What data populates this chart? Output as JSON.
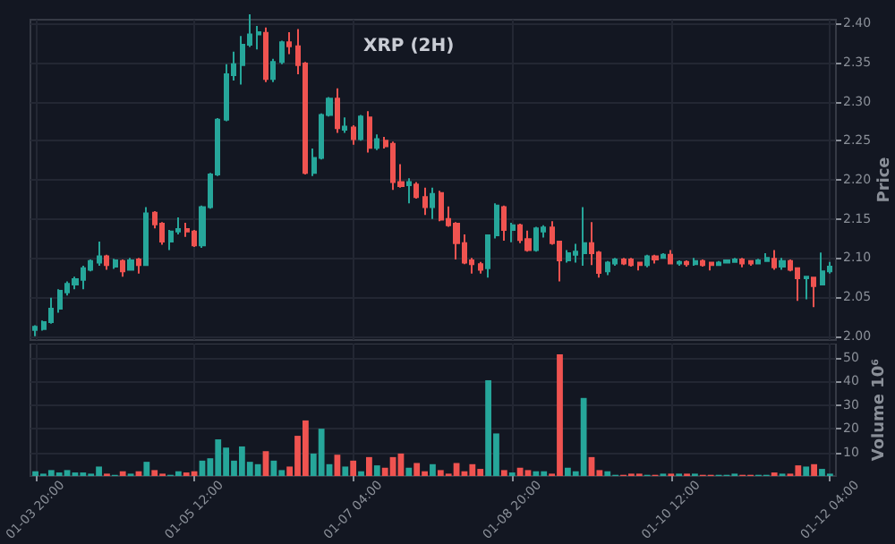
{
  "chart_data": [
    {
      "type": "candlestick",
      "title": "XRP (2H)",
      "ylabel": "Price",
      "grid": true,
      "tick_labels": "y",
      "xlim": [
        "--01-03T18:45",
        "--01-12T05:30"
      ],
      "xticks": [
        {
          "value": "--01-03T20:00",
          "label": "01-03 20:00"
        },
        {
          "value": "--01-05T12:00",
          "label": "01-05 12:00"
        },
        {
          "value": "--01-07T04:00",
          "label": "01-07 04:00"
        },
        {
          "value": "--01-08T20:00",
          "label": "01-08 20:00"
        },
        {
          "value": "--01-10T12:00",
          "label": "01-10 12:00"
        },
        {
          "value": "--01-12T04:00",
          "label": "01-12 04:00"
        }
      ],
      "ylim": [
        1.995,
        2.405
      ],
      "yticks": [
        {
          "value": 2.0,
          "label": "2.00"
        },
        {
          "value": 2.05,
          "label": "2.05"
        },
        {
          "value": 2.1,
          "label": "2.10"
        },
        {
          "value": 2.15,
          "label": "2.15"
        },
        {
          "value": 2.2,
          "label": "2.20"
        },
        {
          "value": 2.25,
          "label": "2.25"
        },
        {
          "value": 2.3,
          "label": "2.30"
        },
        {
          "value": 2.35,
          "label": "2.35"
        },
        {
          "value": 2.4,
          "label": "2.40"
        }
      ],
      "x": [
        "--01-03T20:00",
        "--01-03T22:00",
        "--01-04T00:00",
        "--01-04T02:00",
        "--01-04T04:00",
        "--01-04T06:00",
        "--01-04T08:00",
        "--01-04T10:00",
        "--01-04T12:00",
        "--01-04T14:00",
        "--01-04T16:00",
        "--01-04T18:00",
        "--01-04T20:00",
        "--01-04T22:00",
        "--01-05T00:00",
        "--01-05T02:00",
        "--01-05T04:00",
        "--01-05T06:00",
        "--01-05T08:00",
        "--01-05T10:00",
        "--01-05T12:00",
        "--01-05T14:00",
        "--01-05T16:00",
        "--01-05T18:00",
        "--01-05T20:00",
        "--01-05T22:00",
        "--01-06T00:00",
        "--01-06T02:00",
        "--01-06T04:00",
        "--01-06T06:00",
        "--01-06T08:00",
        "--01-06T10:00",
        "--01-06T12:00",
        "--01-06T14:00",
        "--01-06T16:00",
        "--01-06T18:00",
        "--01-06T20:00",
        "--01-06T22:00",
        "--01-07T00:00",
        "--01-07T02:00",
        "--01-07T04:00",
        "--01-07T06:00",
        "--01-07T08:00",
        "--01-07T10:00",
        "--01-07T12:00",
        "--01-07T14:00",
        "--01-07T16:00",
        "--01-07T18:00",
        "--01-07T20:00",
        "--01-07T22:00",
        "--01-08T00:00",
        "--01-08T02:00",
        "--01-08T04:00",
        "--01-08T06:00",
        "--01-08T08:00",
        "--01-08T10:00",
        "--01-08T12:00",
        "--01-08T14:00",
        "--01-08T16:00",
        "--01-08T18:00",
        "--01-08T20:00",
        "--01-08T22:00",
        "--01-09T00:00",
        "--01-09T02:00",
        "--01-09T04:00",
        "--01-09T06:00",
        "--01-09T08:00",
        "--01-09T10:00",
        "--01-09T12:00",
        "--01-09T14:00",
        "--01-09T16:00",
        "--01-09T18:00",
        "--01-09T20:00",
        "--01-09T22:00",
        "--01-10T00:00",
        "--01-10T02:00",
        "--01-10T04:00",
        "--01-10T06:00",
        "--01-10T08:00",
        "--01-10T10:00",
        "--01-10T12:00",
        "--01-10T14:00",
        "--01-10T16:00",
        "--01-10T18:00",
        "--01-10T20:00",
        "--01-10T22:00",
        "--01-11T00:00",
        "--01-11T02:00",
        "--01-11T04:00",
        "--01-11T06:00",
        "--01-11T08:00",
        "--01-11T10:00",
        "--01-11T12:00",
        "--01-11T14:00",
        "--01-11T16:00",
        "--01-11T18:00",
        "--01-11T20:00",
        "--01-11T22:00",
        "--01-12T00:00",
        "--01-12T02:00",
        "--01-12T04:00"
      ],
      "ohlc": [
        [
          2.008,
          2.014,
          2.0,
          2.012
        ],
        [
          2.009,
          2.02,
          2.007,
          2.018
        ],
        [
          2.018,
          2.049,
          2.016,
          2.035
        ],
        [
          2.035,
          2.06,
          2.03,
          2.058
        ],
        [
          2.056,
          2.07,
          2.052,
          2.067
        ],
        [
          2.066,
          2.076,
          2.06,
          2.073
        ],
        [
          2.072,
          2.09,
          2.06,
          2.087
        ],
        [
          2.085,
          2.098,
          2.083,
          2.096
        ],
        [
          2.094,
          2.121,
          2.09,
          2.102
        ],
        [
          2.102,
          2.104,
          2.085,
          2.091
        ],
        [
          2.089,
          2.099,
          2.086,
          2.097
        ],
        [
          2.096,
          2.098,
          2.076,
          2.083
        ],
        [
          2.085,
          2.1,
          2.084,
          2.097
        ],
        [
          2.098,
          2.1,
          2.08,
          2.091
        ],
        [
          2.091,
          2.165,
          2.09,
          2.157
        ],
        [
          2.158,
          2.16,
          2.138,
          2.143
        ],
        [
          2.144,
          2.146,
          2.117,
          2.121
        ],
        [
          2.121,
          2.136,
          2.11,
          2.134
        ],
        [
          2.134,
          2.152,
          2.13,
          2.137
        ],
        [
          2.137,
          2.145,
          2.127,
          2.134
        ],
        [
          2.134,
          2.136,
          2.114,
          2.116
        ],
        [
          2.116,
          2.167,
          2.113,
          2.165
        ],
        [
          2.165,
          2.209,
          2.163,
          2.207
        ],
        [
          2.207,
          2.279,
          2.205,
          2.277
        ],
        [
          2.277,
          2.348,
          2.275,
          2.335
        ],
        [
          2.334,
          2.364,
          2.327,
          2.348
        ],
        [
          2.347,
          2.384,
          2.322,
          2.373
        ],
        [
          2.373,
          2.412,
          2.37,
          2.386
        ],
        [
          2.386,
          2.397,
          2.367,
          2.389
        ],
        [
          2.388,
          2.395,
          2.325,
          2.329
        ],
        [
          2.329,
          2.355,
          2.325,
          2.351
        ],
        [
          2.351,
          2.378,
          2.348,
          2.376
        ],
        [
          2.376,
          2.389,
          2.361,
          2.371
        ],
        [
          2.371,
          2.393,
          2.335,
          2.347
        ],
        [
          2.349,
          2.351,
          2.207,
          2.209
        ],
        [
          2.209,
          2.24,
          2.205,
          2.228
        ],
        [
          2.228,
          2.285,
          2.226,
          2.283
        ],
        [
          2.283,
          2.306,
          2.281,
          2.304
        ],
        [
          2.304,
          2.317,
          2.26,
          2.266
        ],
        [
          2.264,
          2.28,
          2.26,
          2.268
        ],
        [
          2.267,
          2.27,
          2.245,
          2.252
        ],
        [
          2.252,
          2.283,
          2.25,
          2.281
        ],
        [
          2.28,
          2.288,
          2.235,
          2.241
        ],
        [
          2.241,
          2.258,
          2.238,
          2.252
        ],
        [
          2.25,
          2.255,
          2.24,
          2.243
        ],
        [
          2.246,
          2.249,
          2.187,
          2.197
        ],
        [
          2.197,
          2.22,
          2.19,
          2.192
        ],
        [
          2.193,
          2.202,
          2.17,
          2.197
        ],
        [
          2.194,
          2.197,
          2.176,
          2.178
        ],
        [
          2.178,
          2.19,
          2.155,
          2.165
        ],
        [
          2.165,
          2.19,
          2.15,
          2.182
        ],
        [
          2.183,
          2.186,
          2.147,
          2.149
        ],
        [
          2.15,
          2.166,
          2.14,
          2.142
        ],
        [
          2.144,
          2.146,
          2.098,
          2.119
        ],
        [
          2.119,
          2.13,
          2.092,
          2.094
        ],
        [
          2.097,
          2.1,
          2.08,
          2.092
        ],
        [
          2.092,
          2.095,
          2.08,
          2.085
        ],
        [
          2.087,
          2.13,
          2.075,
          2.129
        ],
        [
          2.129,
          2.17,
          2.125,
          2.167
        ],
        [
          2.165,
          2.167,
          2.122,
          2.136
        ],
        [
          2.136,
          2.145,
          2.12,
          2.142
        ],
        [
          2.142,
          2.144,
          2.119,
          2.123
        ],
        [
          2.124,
          2.135,
          2.108,
          2.11
        ],
        [
          2.11,
          2.14,
          2.108,
          2.138
        ],
        [
          2.134,
          2.142,
          2.126,
          2.139
        ],
        [
          2.139,
          2.147,
          2.117,
          2.119
        ],
        [
          2.121,
          2.122,
          2.07,
          2.097
        ],
        [
          2.097,
          2.11,
          2.094,
          2.106
        ],
        [
          2.104,
          2.118,
          2.094,
          2.108
        ],
        [
          2.106,
          2.165,
          2.09,
          2.119
        ],
        [
          2.119,
          2.146,
          2.091,
          2.106
        ],
        [
          2.107,
          2.109,
          2.075,
          2.081
        ],
        [
          2.083,
          2.096,
          2.078,
          2.094
        ],
        [
          2.093,
          2.1,
          2.09,
          2.098
        ],
        [
          2.098,
          2.1,
          2.091,
          2.093
        ],
        [
          2.098,
          2.1,
          2.089,
          2.091
        ],
        [
          2.094,
          2.094,
          2.084,
          2.091
        ],
        [
          2.091,
          2.104,
          2.088,
          2.102
        ],
        [
          2.102,
          2.104,
          2.093,
          2.098
        ],
        [
          2.1,
          2.106,
          2.099,
          2.104
        ],
        [
          2.104,
          2.11,
          2.092,
          2.093
        ],
        [
          2.093,
          2.097,
          2.09,
          2.095
        ],
        [
          2.095,
          2.097,
          2.089,
          2.092
        ],
        [
          2.092,
          2.1,
          2.09,
          2.096
        ],
        [
          2.096,
          2.098,
          2.089,
          2.091
        ],
        [
          2.094,
          2.095,
          2.084,
          2.091
        ],
        [
          2.091,
          2.096,
          2.09,
          2.094
        ],
        [
          2.094,
          2.098,
          2.093,
          2.097
        ],
        [
          2.095,
          2.1,
          2.094,
          2.098
        ],
        [
          2.098,
          2.1,
          2.088,
          2.093
        ],
        [
          2.096,
          2.097,
          2.09,
          2.093
        ],
        [
          2.093,
          2.099,
          2.092,
          2.097
        ],
        [
          2.096,
          2.106,
          2.095,
          2.1
        ],
        [
          2.099,
          2.11,
          2.085,
          2.088
        ],
        [
          2.089,
          2.1,
          2.085,
          2.096
        ],
        [
          2.096,
          2.098,
          2.083,
          2.085
        ],
        [
          2.087,
          2.087,
          2.045,
          2.074
        ],
        [
          2.074,
          2.077,
          2.047,
          2.076
        ],
        [
          2.075,
          2.076,
          2.037,
          2.064
        ],
        [
          2.066,
          2.107,
          2.065,
          2.083
        ],
        [
          2.083,
          2.095,
          2.08,
          2.089
        ]
      ]
    },
    {
      "type": "bar",
      "ylabel": "Volume 10⁶",
      "grid": true,
      "xlim": [
        "--01-03T18:45",
        "--01-12T05:30"
      ],
      "xticks": [
        {
          "value": "--01-03T20:00",
          "label": "01-03 20:00"
        },
        {
          "value": "--01-05T12:00",
          "label": "01-05 12:00"
        },
        {
          "value": "--01-07T04:00",
          "label": "01-07 04:00"
        },
        {
          "value": "--01-08T20:00",
          "label": "01-08 20:00"
        },
        {
          "value": "--01-10T12:00",
          "label": "01-10 12:00"
        },
        {
          "value": "--01-12T04:00",
          "label": "01-12 04:00"
        }
      ],
      "ylim": [
        0,
        56
      ],
      "yticks": [
        10,
        20,
        30,
        40,
        50
      ],
      "x": [
        "--01-03T20:00",
        "--01-03T22:00",
        "--01-04T00:00",
        "--01-04T02:00",
        "--01-04T04:00",
        "--01-04T06:00",
        "--01-04T08:00",
        "--01-04T10:00",
        "--01-04T12:00",
        "--01-04T14:00",
        "--01-04T16:00",
        "--01-04T18:00",
        "--01-04T20:00",
        "--01-04T22:00",
        "--01-05T00:00",
        "--01-05T02:00",
        "--01-05T04:00",
        "--01-05T06:00",
        "--01-05T08:00",
        "--01-05T10:00",
        "--01-05T12:00",
        "--01-05T14:00",
        "--01-05T16:00",
        "--01-05T18:00",
        "--01-05T20:00",
        "--01-05T22:00",
        "--01-06T00:00",
        "--01-06T02:00",
        "--01-06T04:00",
        "--01-06T06:00",
        "--01-06T08:00",
        "--01-06T10:00",
        "--01-06T12:00",
        "--01-06T14:00",
        "--01-06T16:00",
        "--01-06T18:00",
        "--01-06T20:00",
        "--01-06T22:00",
        "--01-07T00:00",
        "--01-07T02:00",
        "--01-07T04:00",
        "--01-07T06:00",
        "--01-07T08:00",
        "--01-07T10:00",
        "--01-07T12:00",
        "--01-07T14:00",
        "--01-07T16:00",
        "--01-07T18:00",
        "--01-07T20:00",
        "--01-07T22:00",
        "--01-08T00:00",
        "--01-08T02:00",
        "--01-08T04:00",
        "--01-08T06:00",
        "--01-08T08:00",
        "--01-08T10:00",
        "--01-08T12:00",
        "--01-08T14:00",
        "--01-08T16:00",
        "--01-08T18:00",
        "--01-08T20:00",
        "--01-08T22:00",
        "--01-09T00:00",
        "--01-09T02:00",
        "--01-09T04:00",
        "--01-09T06:00",
        "--01-09T08:00",
        "--01-09T10:00",
        "--01-09T12:00",
        "--01-09T14:00",
        "--01-09T16:00",
        "--01-09T18:00",
        "--01-09T20:00",
        "--01-09T22:00",
        "--01-10T00:00",
        "--01-10T02:00",
        "--01-10T04:00",
        "--01-10T06:00",
        "--01-10T08:00",
        "--01-10T10:00",
        "--01-10T12:00",
        "--01-10T14:00",
        "--01-10T16:00",
        "--01-10T18:00",
        "--01-10T20:00",
        "--01-10T22:00",
        "--01-11T00:00",
        "--01-11T02:00",
        "--01-11T04:00",
        "--01-11T06:00",
        "--01-11T08:00",
        "--01-11T10:00",
        "--01-11T12:00",
        "--01-11T14:00",
        "--01-11T16:00",
        "--01-11T18:00",
        "--01-11T20:00",
        "--01-11T22:00",
        "--01-12T00:00",
        "--01-12T02:00",
        "--01-12T04:00"
      ],
      "values": [
        2,
        1,
        2.5,
        1.5,
        2.5,
        1.5,
        1.5,
        1,
        4,
        1,
        0.5,
        2,
        1,
        2,
        6,
        2.5,
        1,
        0.5,
        2,
        1.5,
        2,
        6.5,
        7.5,
        15.5,
        12,
        6.5,
        12.5,
        6,
        5,
        10.5,
        6.5,
        2.5,
        4,
        17,
        23.5,
        9.5,
        20,
        5,
        9,
        4,
        6.5,
        2,
        8,
        4.5,
        3.5,
        8,
        9.5,
        3.5,
        5.5,
        2,
        5,
        2.5,
        1,
        5.5,
        2,
        5,
        3,
        40.5,
        18,
        2.5,
        1.5,
        3.5,
        2.5,
        2,
        2,
        1,
        51.5,
        3.5,
        2,
        33,
        8,
        2.5,
        2,
        0.5,
        0.5,
        1,
        1,
        0.5,
        0.5,
        1,
        1,
        1,
        1,
        1,
        0.5,
        0.5,
        0.5,
        0.5,
        1,
        0.5,
        0.5,
        0.5,
        0.5,
        1.5,
        1,
        1,
        4.5,
        4,
        5,
        3,
        1
      ],
      "colors": [
        "#26a69a",
        "#26a69a",
        "#26a69a",
        "#26a69a",
        "#26a69a",
        "#26a69a",
        "#26a69a",
        "#26a69a",
        "#26a69a",
        "#ef5350",
        "#26a69a",
        "#ef5350",
        "#26a69a",
        "#ef5350",
        "#26a69a",
        "#ef5350",
        "#ef5350",
        "#26a69a",
        "#26a69a",
        "#ef5350",
        "#ef5350",
        "#26a69a",
        "#26a69a",
        "#26a69a",
        "#26a69a",
        "#26a69a",
        "#26a69a",
        "#26a69a",
        "#26a69a",
        "#ef5350",
        "#26a69a",
        "#26a69a",
        "#ef5350",
        "#ef5350",
        "#ef5350",
        "#26a69a",
        "#26a69a",
        "#26a69a",
        "#ef5350",
        "#26a69a",
        "#ef5350",
        "#26a69a",
        "#ef5350",
        "#26a69a",
        "#ef5350",
        "#ef5350",
        "#ef5350",
        "#26a69a",
        "#ef5350",
        "#ef5350",
        "#26a69a",
        "#ef5350",
        "#ef5350",
        "#ef5350",
        "#ef5350",
        "#ef5350",
        "#ef5350",
        "#26a69a",
        "#26a69a",
        "#ef5350",
        "#26a69a",
        "#ef5350",
        "#ef5350",
        "#26a69a",
        "#26a69a",
        "#ef5350",
        "#ef5350",
        "#26a69a",
        "#26a69a",
        "#26a69a",
        "#ef5350",
        "#ef5350",
        "#26a69a",
        "#26a69a",
        "#ef5350",
        "#ef5350",
        "#ef5350",
        "#26a69a",
        "#ef5350",
        "#26a69a",
        "#ef5350",
        "#26a69a",
        "#ef5350",
        "#26a69a",
        "#ef5350",
        "#ef5350",
        "#26a69a",
        "#26a69a",
        "#26a69a",
        "#ef5350",
        "#ef5350",
        "#26a69a",
        "#26a69a",
        "#ef5350",
        "#26a69a",
        "#ef5350",
        "#ef5350",
        "#26a69a",
        "#ef5350",
        "#26a69a",
        "#26a69a"
      ]
    }
  ]
}
